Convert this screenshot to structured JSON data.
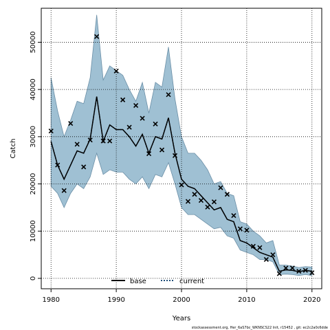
{
  "chart_data": {
    "type": "line",
    "xlabel": "Years",
    "ylabel": "Catch",
    "xlim": [
      1978.5,
      2021.5
    ],
    "ylim": [
      -2200,
      57200
    ],
    "x_ticks": [
      1980,
      1990,
      2000,
      2010,
      2020
    ],
    "y_ticks": [
      0,
      10000,
      20000,
      30000,
      40000,
      50000
    ],
    "grid": true,
    "legend": [
      {
        "name": "base",
        "style": "solid",
        "color": "#000000"
      },
      {
        "name": "current",
        "style": "dotted",
        "color": "#1f4e79"
      }
    ],
    "legend_position": "bottom-center",
    "colors": {
      "band_fill": "#9fc0d3",
      "band_stroke": "#6a8ea6",
      "line": "#000000",
      "obs": "#000000"
    },
    "years": [
      1980,
      1981,
      1982,
      1983,
      1984,
      1985,
      1986,
      1987,
      1988,
      1989,
      1990,
      1991,
      1992,
      1993,
      1994,
      1995,
      1996,
      1997,
      1998,
      1999,
      2000,
      2001,
      2002,
      2003,
      2004,
      2005,
      2006,
      2007,
      2008,
      2009,
      2010,
      2011,
      2012,
      2013,
      2014,
      2015,
      2016,
      2017,
      2018,
      2019,
      2020
    ],
    "series": [
      {
        "name": "current",
        "values": [
          29000,
          24000,
          21000,
          24000,
          27000,
          26500,
          29500,
          38500,
          29000,
          32500,
          31500,
          31500,
          30000,
          28000,
          30500,
          26500,
          30000,
          29500,
          34000,
          26500,
          21000,
          19500,
          19000,
          17500,
          16000,
          14500,
          15000,
          12500,
          12000,
          8000,
          7500,
          6500,
          5500,
          5000,
          4500,
          1500,
          1800,
          1700,
          1400,
          1700,
          1500
        ]
      },
      {
        "name": "base",
        "values": [
          29000,
          24000,
          21000,
          24000,
          27000,
          26500,
          29500,
          38500,
          29000,
          32500,
          31500,
          31500,
          30000,
          28000,
          30500,
          26500,
          30000,
          29500,
          34000,
          26500,
          21000,
          19500,
          19000,
          17500,
          16000,
          14500,
          15000,
          12500,
          12000,
          8000,
          7500,
          6500,
          5500,
          5000,
          4500,
          1500,
          1800,
          1700,
          1400,
          1700,
          1500
        ]
      }
    ],
    "band_upper": [
      42500,
      35500,
      30000,
      33500,
      37500,
      37000,
      42500,
      55800,
      42000,
      45000,
      44000,
      43000,
      40000,
      37500,
      41500,
      35000,
      41500,
      40500,
      49000,
      38000,
      30000,
      26500,
      26500,
      25000,
      23000,
      20000,
      20500,
      18000,
      17500,
      12000,
      11500,
      10000,
      9000,
      7500,
      8000,
      2800,
      2800,
      2600,
      2300,
      2500,
      2400
    ],
    "band_lower": [
      19500,
      18000,
      15000,
      18000,
      20000,
      19000,
      21500,
      26500,
      22000,
      23000,
      22500,
      22500,
      21000,
      20000,
      21500,
      19000,
      22000,
      21500,
      24500,
      20000,
      15000,
      13500,
      13500,
      12500,
      11500,
      10500,
      10800,
      9000,
      8500,
      6000,
      5500,
      5000,
      4000,
      4000,
      3500,
      800,
      900,
      800,
      600,
      800,
      600
    ],
    "observed": [
      {
        "x": 1980,
        "y": 31200
      },
      {
        "x": 1981,
        "y": 24000
      },
      {
        "x": 1982,
        "y": 18600
      },
      {
        "x": 1983,
        "y": 32800
      },
      {
        "x": 1984,
        "y": 28400
      },
      {
        "x": 1985,
        "y": 23600
      },
      {
        "x": 1986,
        "y": 29300
      },
      {
        "x": 1987,
        "y": 51200
      },
      {
        "x": 1988,
        "y": 29100
      },
      {
        "x": 1989,
        "y": 29100
      },
      {
        "x": 1990,
        "y": 43900
      },
      {
        "x": 1991,
        "y": 37800
      },
      {
        "x": 1992,
        "y": 32000
      },
      {
        "x": 1993,
        "y": 36600
      },
      {
        "x": 1994,
        "y": 33900
      },
      {
        "x": 1995,
        "y": 26400
      },
      {
        "x": 1996,
        "y": 32700
      },
      {
        "x": 1997,
        "y": 27200
      },
      {
        "x": 1998,
        "y": 38900
      },
      {
        "x": 1999,
        "y": 26000
      },
      {
        "x": 2000,
        "y": 19800
      },
      {
        "x": 2001,
        "y": 16300
      },
      {
        "x": 2002,
        "y": 17800
      },
      {
        "x": 2003,
        "y": 16500
      },
      {
        "x": 2004,
        "y": 15100
      },
      {
        "x": 2005,
        "y": 16200
      },
      {
        "x": 2006,
        "y": 19200
      },
      {
        "x": 2007,
        "y": 17800
      },
      {
        "x": 2008,
        "y": 13300
      },
      {
        "x": 2009,
        "y": 10500
      },
      {
        "x": 2010,
        "y": 10200
      },
      {
        "x": 2011,
        "y": 6800
      },
      {
        "x": 2012,
        "y": 6500
      },
      {
        "x": 2013,
        "y": 4000
      },
      {
        "x": 2014,
        "y": 5000
      },
      {
        "x": 2015,
        "y": 1000
      },
      {
        "x": 2016,
        "y": 2200
      },
      {
        "x": 2017,
        "y": 2200
      },
      {
        "x": 2018,
        "y": 1500
      },
      {
        "x": 2019,
        "y": 1700
      },
      {
        "x": 2020,
        "y": 1200
      }
    ]
  },
  "footer_text": "stockassessment.org, Her_6aS7bc_WKNSCS22 Init, r15452 , git: ec2c2a0c6dde"
}
